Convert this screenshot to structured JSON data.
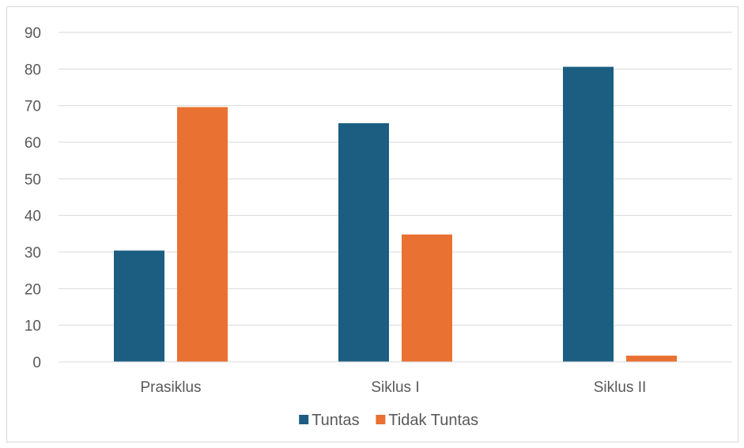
{
  "chart_data": {
    "type": "bar",
    "categories": [
      "Prasiklus",
      "Siklus I",
      "Siklus II"
    ],
    "series": [
      {
        "name": "Tuntas",
        "values": [
          30.4,
          65.2,
          80.6
        ],
        "color": "#1b5e82"
      },
      {
        "name": "Tidak Tuntas",
        "values": [
          69.6,
          34.8,
          1.7
        ],
        "color": "#e97132"
      }
    ],
    "ylim": [
      0,
      90
    ],
    "yticks": [
      0,
      10,
      20,
      30,
      40,
      50,
      60,
      70,
      80,
      90
    ],
    "grid": true,
    "legend": "bottom"
  }
}
